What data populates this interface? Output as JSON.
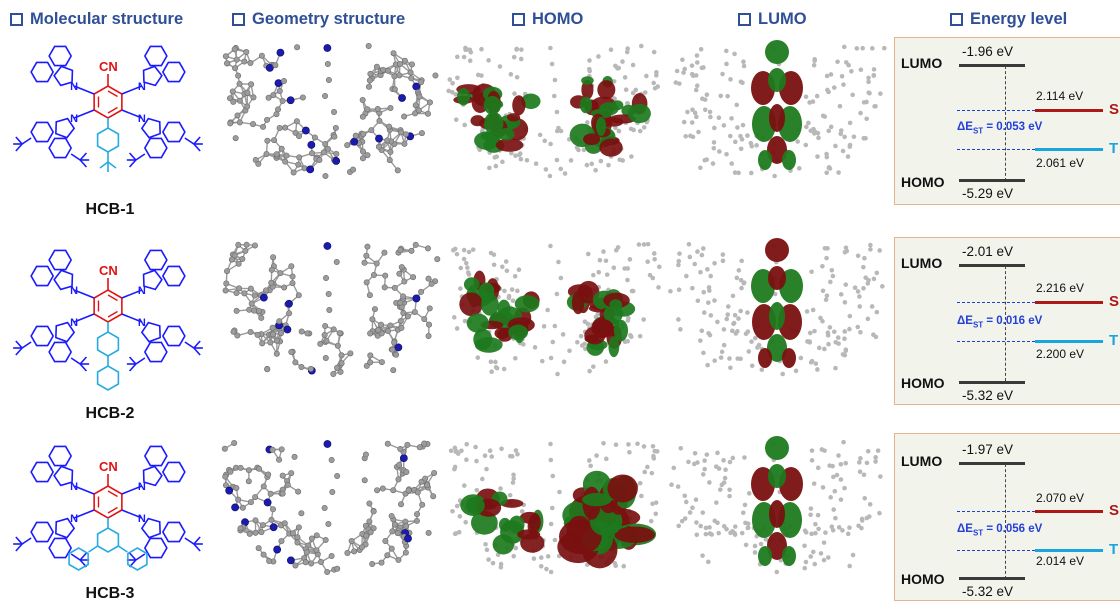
{
  "headers": {
    "molecular": "Molecular structure",
    "geometry": "Geometry structure",
    "homo": "HOMO",
    "lumo": "LUMO",
    "energy": "Energy level"
  },
  "rows": [
    {
      "name": "HCB-1",
      "lumo_ev": "-1.96 eV",
      "homo_ev": "-5.29 eV",
      "s1": "2.114 eV",
      "t1": "2.061 eV",
      "dest": "= 0.053 eV",
      "tail": "phenyl"
    },
    {
      "name": "HCB-2",
      "lumo_ev": "-2.01 eV",
      "homo_ev": "-5.32 eV",
      "s1": "2.216 eV",
      "t1": "2.200 eV",
      "dest": "= 0.016 eV",
      "tail": "biphenyl"
    },
    {
      "name": "HCB-3",
      "lumo_ev": "-1.97 eV",
      "homo_ev": "-5.32 eV",
      "s1": "2.070 eV",
      "t1": "2.014 eV",
      "dest": "= 0.056 eV",
      "tail": "terphenyl"
    }
  ],
  "level_labels": {
    "lumo": "LUMO",
    "homo": "HOMO",
    "s": "S",
    "t": "T"
  },
  "dest_symbol": "ΔE",
  "dest_sub": "ST",
  "cn_label": "CN",
  "n_label": "N",
  "colors": {
    "header": "#2f4f96",
    "donor": "#1a1aff",
    "acceptor": "#e01414",
    "tail": "#27a9e1",
    "s_level": "#b01818",
    "t_level": "#1aa5e0",
    "orbital_red": "#7a1010",
    "orbital_green": "#1d7a1d"
  }
}
